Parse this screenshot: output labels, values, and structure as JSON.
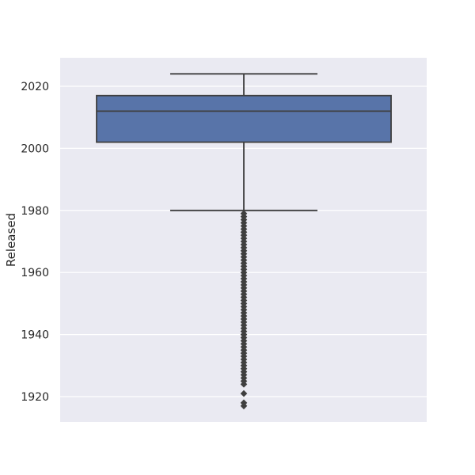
{
  "chart_data": {
    "type": "box",
    "title": "",
    "xlabel": "",
    "ylabel": "Released",
    "ylim": [
      1916,
      2029
    ],
    "yticks": [
      1920,
      1940,
      1960,
      1980,
      2000,
      2020
    ],
    "grid": true,
    "colors": {
      "background": "#EAEAF2",
      "grid": "#FFFFFF",
      "box_fill": "#5874A9",
      "line": "#3F3F3F"
    },
    "box": {
      "whisker_low": 1980,
      "q1": 2002,
      "median": 2012,
      "q3": 2017,
      "whisker_high": 2024
    },
    "outliers": [
      1979,
      1978,
      1977,
      1976,
      1975,
      1974,
      1973,
      1972,
      1971,
      1970,
      1969,
      1968,
      1967,
      1966,
      1965,
      1964,
      1963,
      1962,
      1961,
      1960,
      1959,
      1958,
      1957,
      1956,
      1955,
      1954,
      1953,
      1952,
      1951,
      1950,
      1949,
      1948,
      1947,
      1946,
      1945,
      1944,
      1943,
      1942,
      1941,
      1940,
      1939,
      1938,
      1937,
      1936,
      1935,
      1934,
      1933,
      1932,
      1931,
      1930,
      1929,
      1928,
      1927,
      1926,
      1925,
      1924,
      1921,
      1918,
      1917
    ]
  }
}
